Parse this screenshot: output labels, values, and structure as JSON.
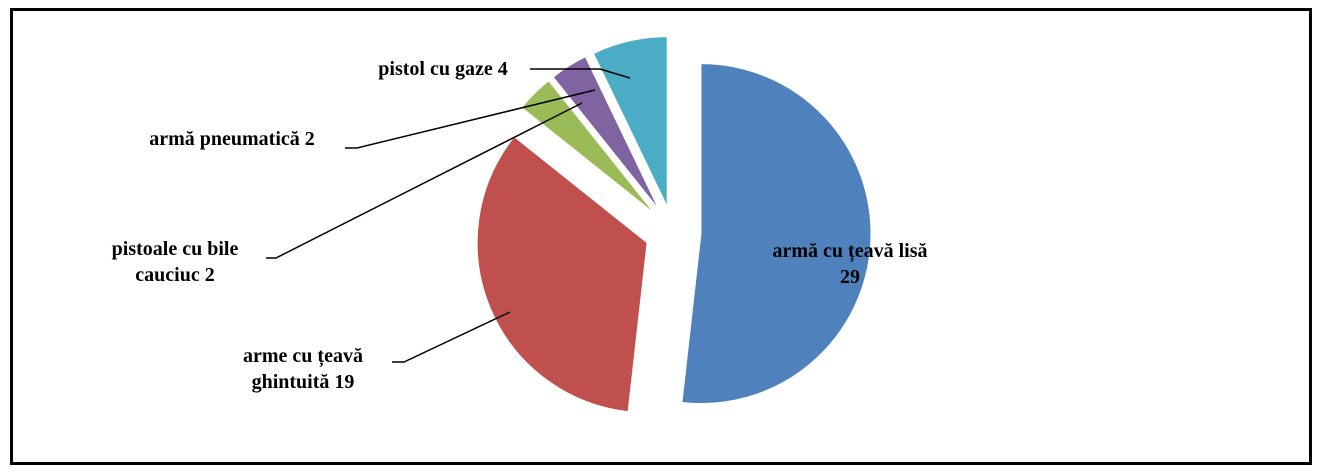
{
  "chart_data": {
    "type": "pie",
    "exploded": true,
    "start_angle_deg": 0,
    "direction": "clockwise",
    "series": [
      {
        "values": [
          29,
          19,
          2,
          2,
          4
        ]
      }
    ],
    "categories": [
      "armă cu țeavă lisă",
      "arme cu țeavă ghintuită",
      "pistoale cu bile cauciuc",
      "armă pneumatică",
      "pistol cu gaze"
    ],
    "slices": [
      {
        "category": "armă cu țeavă lisă",
        "value": 29,
        "color": "#4F81BD",
        "label_lines": [
          "armă cu țeavă lisă",
          "29"
        ],
        "label_position": "inside"
      },
      {
        "category": "arme cu țeavă ghintuită",
        "value": 19,
        "color": "#C0504D",
        "label_lines": [
          "arme cu țeavă",
          "ghintuită 19"
        ],
        "label_position": "outside"
      },
      {
        "category": "pistoale cu bile cauciuc",
        "value": 2,
        "color": "#9BBB59",
        "label_lines": [
          "pistoale cu bile",
          "cauciuc 2"
        ],
        "label_position": "outside"
      },
      {
        "category": "armă pneumatică",
        "value": 2,
        "color": "#8064A2",
        "label_lines": [
          "armă pneumatică 2"
        ],
        "label_position": "outside"
      },
      {
        "category": "pistol cu gaze",
        "value": 4,
        "color": "#4BACC6",
        "label_lines": [
          "pistol cu gaze 4"
        ],
        "label_position": "outside"
      }
    ],
    "title": "",
    "legend": "none"
  }
}
